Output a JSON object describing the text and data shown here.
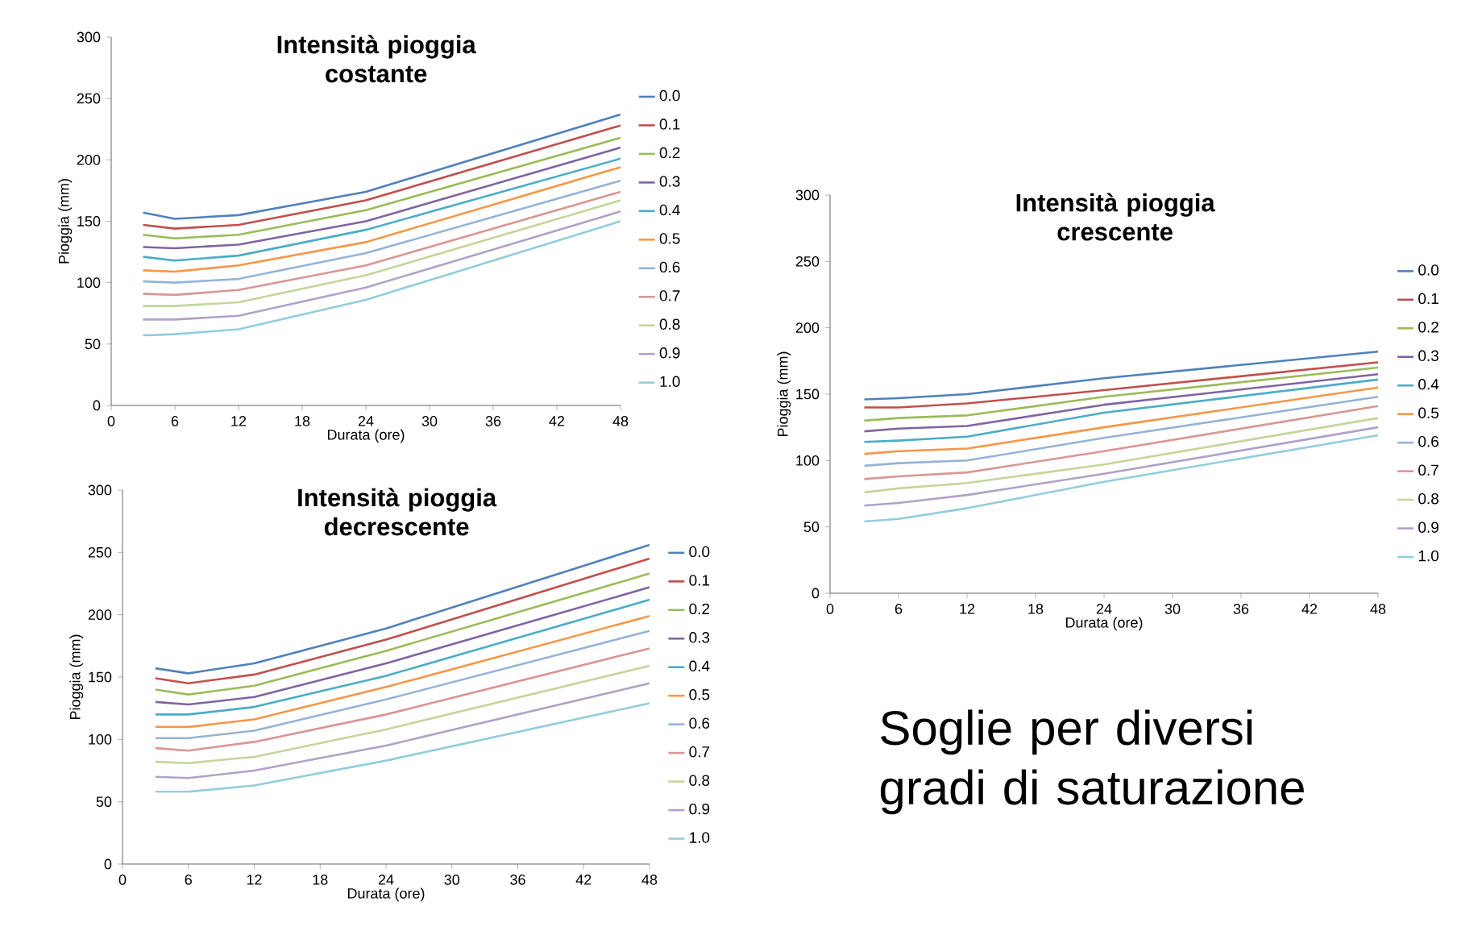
{
  "chart_data": [
    {
      "type": "line",
      "title": "Intensità pioggia costante",
      "xlabel": "Durata (ore)",
      "ylabel": "Pioggia (mm)",
      "x": [
        3,
        6,
        12,
        24,
        48
      ],
      "xlim": [
        0,
        48
      ],
      "ylim": [
        0,
        300
      ],
      "xticks": [
        0,
        6,
        12,
        18,
        24,
        30,
        36,
        42,
        48
      ],
      "yticks": [
        0,
        50,
        100,
        150,
        200,
        250,
        300
      ],
      "grid": false,
      "legend": "right",
      "series": [
        {
          "name": "0.0",
          "color": "#4f81bd",
          "values": [
            157,
            152,
            155,
            174,
            237
          ]
        },
        {
          "name": "0.1",
          "color": "#c0504d",
          "values": [
            147,
            144,
            147,
            167,
            228
          ]
        },
        {
          "name": "0.2",
          "color": "#9bbb59",
          "values": [
            139,
            136,
            139,
            159,
            218
          ]
        },
        {
          "name": "0.3",
          "color": "#8064a2",
          "values": [
            129,
            128,
            131,
            150,
            210
          ]
        },
        {
          "name": "0.4",
          "color": "#4bacc6",
          "values": [
            121,
            118,
            122,
            143,
            201
          ]
        },
        {
          "name": "0.5",
          "color": "#f79646",
          "values": [
            110,
            109,
            114,
            133,
            194
          ]
        },
        {
          "name": "0.6",
          "color": "#95b3d7",
          "values": [
            101,
            100,
            103,
            124,
            183
          ]
        },
        {
          "name": "0.7",
          "color": "#d99694",
          "values": [
            91,
            90,
            94,
            114,
            174
          ]
        },
        {
          "name": "0.8",
          "color": "#c3d69b",
          "values": [
            81,
            81,
            84,
            106,
            167
          ]
        },
        {
          "name": "0.9",
          "color": "#b2a1c7",
          "values": [
            70,
            70,
            73,
            96,
            158
          ]
        },
        {
          "name": "1.0",
          "color": "#93cddd",
          "values": [
            57,
            58,
            62,
            86,
            150
          ]
        }
      ]
    },
    {
      "type": "line",
      "title": "Intensità pioggia crescente",
      "xlabel": "Durata (ore)",
      "ylabel": "Pioggia (mm)",
      "x": [
        3,
        6,
        12,
        24,
        48
      ],
      "xlim": [
        0,
        48
      ],
      "ylim": [
        0,
        300
      ],
      "xticks": [
        0,
        6,
        12,
        18,
        24,
        30,
        36,
        42,
        48
      ],
      "yticks": [
        0,
        50,
        100,
        150,
        200,
        250,
        300
      ],
      "grid": false,
      "legend": "right",
      "series": [
        {
          "name": "0.0",
          "color": "#4f81bd",
          "values": [
            146,
            147,
            150,
            162,
            182
          ]
        },
        {
          "name": "0.1",
          "color": "#c0504d",
          "values": [
            140,
            140,
            143,
            153,
            174
          ]
        },
        {
          "name": "0.2",
          "color": "#9bbb59",
          "values": [
            130,
            132,
            134,
            148,
            170
          ]
        },
        {
          "name": "0.3",
          "color": "#8064a2",
          "values": [
            122,
            124,
            126,
            142,
            165
          ]
        },
        {
          "name": "0.4",
          "color": "#4bacc6",
          "values": [
            114,
            115,
            118,
            136,
            161
          ]
        },
        {
          "name": "0.5",
          "color": "#f79646",
          "values": [
            105,
            107,
            109,
            125,
            155
          ]
        },
        {
          "name": "0.6",
          "color": "#95b3d7",
          "values": [
            96,
            98,
            100,
            117,
            148
          ]
        },
        {
          "name": "0.7",
          "color": "#d99694",
          "values": [
            86,
            88,
            91,
            107,
            141
          ]
        },
        {
          "name": "0.8",
          "color": "#c3d69b",
          "values": [
            76,
            79,
            83,
            97,
            132
          ]
        },
        {
          "name": "0.9",
          "color": "#b2a1c7",
          "values": [
            66,
            68,
            74,
            90,
            125
          ]
        },
        {
          "name": "1.0",
          "color": "#93cddd",
          "values": [
            54,
            56,
            64,
            84,
            119
          ]
        }
      ]
    },
    {
      "type": "line",
      "title": "Intensità pioggia decrescente",
      "xlabel": "Durata (ore)",
      "ylabel": "Pioggia (mm)",
      "x": [
        3,
        6,
        12,
        24,
        48
      ],
      "xlim": [
        0,
        48
      ],
      "ylim": [
        0,
        300
      ],
      "xticks": [
        0,
        6,
        12,
        18,
        24,
        30,
        36,
        42,
        48
      ],
      "yticks": [
        0,
        50,
        100,
        150,
        200,
        250,
        300
      ],
      "grid": false,
      "legend": "right",
      "series": [
        {
          "name": "0.0",
          "color": "#4f81bd",
          "values": [
            157,
            153,
            161,
            189,
            256
          ]
        },
        {
          "name": "0.1",
          "color": "#c0504d",
          "values": [
            149,
            145,
            152,
            180,
            245
          ]
        },
        {
          "name": "0.2",
          "color": "#9bbb59",
          "values": [
            140,
            136,
            143,
            171,
            233
          ]
        },
        {
          "name": "0.3",
          "color": "#8064a2",
          "values": [
            130,
            128,
            134,
            161,
            222
          ]
        },
        {
          "name": "0.4",
          "color": "#4bacc6",
          "values": [
            120,
            120,
            126,
            151,
            212
          ]
        },
        {
          "name": "0.5",
          "color": "#f79646",
          "values": [
            110,
            110,
            116,
            142,
            199
          ]
        },
        {
          "name": "0.6",
          "color": "#95b3d7",
          "values": [
            101,
            101,
            107,
            132,
            187
          ]
        },
        {
          "name": "0.7",
          "color": "#d99694",
          "values": [
            93,
            91,
            98,
            120,
            173
          ]
        },
        {
          "name": "0.8",
          "color": "#c3d69b",
          "values": [
            82,
            81,
            86,
            108,
            159
          ]
        },
        {
          "name": "0.9",
          "color": "#b2a1c7",
          "values": [
            70,
            69,
            75,
            95,
            145
          ]
        },
        {
          "name": "1.0",
          "color": "#93cddd",
          "values": [
            58,
            58,
            63,
            83,
            129
          ]
        }
      ]
    },
    {
      "type": "other",
      "title": "Soglie per diversi gradi di saturazione"
    }
  ]
}
